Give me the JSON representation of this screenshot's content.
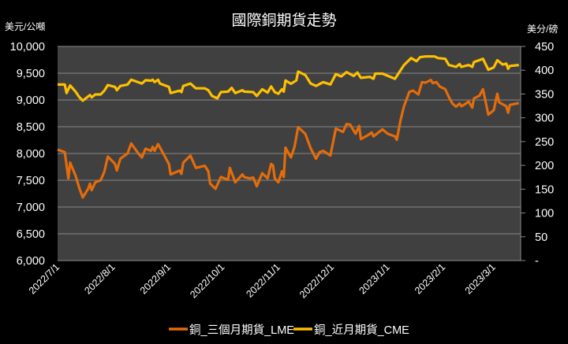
{
  "chart_data": {
    "type": "line",
    "title": "國際銅期貨走勢",
    "ylabel_left": "美元/公噸",
    "ylabel_right": "美分/磅",
    "xlim": [
      "2022-07-01",
      "2023-03-16"
    ],
    "ylim_left": [
      6000,
      10000
    ],
    "ylim_right": [
      0,
      450
    ],
    "grid": true,
    "background": "#404040",
    "legend_position": "bottom",
    "x_ticks": [
      "2022-07-01",
      "2022-08-01",
      "2022-09-01",
      "2022-10-01",
      "2022-11-01",
      "2022-12-01",
      "2023-01-01",
      "2023-02-01",
      "2023-03-01"
    ],
    "x_tick_labels": [
      "2022/7/1",
      "2022/8/1",
      "2022/9/1",
      "2022/10/1",
      "2022/11/1",
      "2022/12/1",
      "2023/1/1",
      "2023/2/1",
      "2023/3/1"
    ],
    "y_left_ticks": [
      6000,
      6500,
      7000,
      7500,
      8000,
      8500,
      9000,
      9500,
      10000
    ],
    "y_left_tick_labels": [
      "6,000",
      "6,500",
      "7,000",
      "7,500",
      "8,000",
      "8,500",
      "9,000",
      "9,500",
      "10,000"
    ],
    "y_right_ticks": [
      0,
      50,
      100,
      150,
      200,
      250,
      300,
      350,
      400,
      450
    ],
    "y_right_tick_labels": [
      "-",
      "50",
      "100",
      "150",
      "200",
      "250",
      "300",
      "350",
      "400",
      "450"
    ],
    "series": [
      {
        "name": "銅_三個月期貨_LME",
        "axis": "left",
        "color": "#E46C0A",
        "points": [
          [
            "2022-07-01",
            8074
          ],
          [
            "2022-07-05",
            8025
          ],
          [
            "2022-07-07",
            7535
          ],
          [
            "2022-07-08",
            7830
          ],
          [
            "2022-07-11",
            7585
          ],
          [
            "2022-07-13",
            7364
          ],
          [
            "2022-07-15",
            7178
          ],
          [
            "2022-07-18",
            7340
          ],
          [
            "2022-07-19",
            7437
          ],
          [
            "2022-07-20",
            7315
          ],
          [
            "2022-07-22",
            7462
          ],
          [
            "2022-07-25",
            7500
          ],
          [
            "2022-07-27",
            7658
          ],
          [
            "2022-07-29",
            7942
          ],
          [
            "2022-08-02",
            7805
          ],
          [
            "2022-08-03",
            7682
          ],
          [
            "2022-08-05",
            7903
          ],
          [
            "2022-08-09",
            8000
          ],
          [
            "2022-08-11",
            8187
          ],
          [
            "2022-08-15",
            8000
          ],
          [
            "2022-08-17",
            7927
          ],
          [
            "2022-08-19",
            8089
          ],
          [
            "2022-08-22",
            8050
          ],
          [
            "2022-08-23",
            8123
          ],
          [
            "2022-08-24",
            8050
          ],
          [
            "2022-08-26",
            8177
          ],
          [
            "2022-09-01",
            7805
          ],
          [
            "2022-09-02",
            7609
          ],
          [
            "2022-09-07",
            7682
          ],
          [
            "2022-09-08",
            7619
          ],
          [
            "2022-09-09",
            7830
          ],
          [
            "2022-09-13",
            7962
          ],
          [
            "2022-09-16",
            7731
          ],
          [
            "2022-09-21",
            7770
          ],
          [
            "2022-09-23",
            7668
          ],
          [
            "2022-09-24",
            7437
          ],
          [
            "2022-09-27",
            7340
          ],
          [
            "2022-09-30",
            7560
          ],
          [
            "2022-10-04",
            7511
          ],
          [
            "2022-10-05",
            7731
          ],
          [
            "2022-10-08",
            7462
          ],
          [
            "2022-10-12",
            7609
          ],
          [
            "2022-10-13",
            7560
          ],
          [
            "2022-10-16",
            7535
          ],
          [
            "2022-10-18",
            7550
          ],
          [
            "2022-10-20",
            7388
          ],
          [
            "2022-10-23",
            7633
          ],
          [
            "2022-10-26",
            7535
          ],
          [
            "2022-10-28",
            7805
          ],
          [
            "2022-10-29",
            7780
          ],
          [
            "2022-10-30",
            7535
          ],
          [
            "2022-11-01",
            7462
          ],
          [
            "2022-11-03",
            7668
          ],
          [
            "2022-11-04",
            7560
          ],
          [
            "2022-11-05",
            8109
          ],
          [
            "2022-11-08",
            7927
          ],
          [
            "2022-11-10",
            8123
          ],
          [
            "2022-11-12",
            8491
          ],
          [
            "2022-11-16",
            8368
          ],
          [
            "2022-11-19",
            8099
          ],
          [
            "2022-11-22",
            7903
          ],
          [
            "2022-11-24",
            8025
          ],
          [
            "2022-11-26",
            8050
          ],
          [
            "2022-11-30",
            7962
          ],
          [
            "2022-12-03",
            8466
          ],
          [
            "2022-12-07",
            8403
          ],
          [
            "2022-12-09",
            8550
          ],
          [
            "2022-12-11",
            8540
          ],
          [
            "2022-12-14",
            8368
          ],
          [
            "2022-12-16",
            8515
          ],
          [
            "2022-12-17",
            8270
          ],
          [
            "2022-12-21",
            8344
          ],
          [
            "2022-12-23",
            8393
          ],
          [
            "2022-12-24",
            8320
          ],
          [
            "2022-12-29",
            8452
          ],
          [
            "2023-01-01",
            8368
          ],
          [
            "2023-01-05",
            8320
          ],
          [
            "2023-01-06",
            8256
          ],
          [
            "2023-01-08",
            8613
          ],
          [
            "2023-01-10",
            8883
          ],
          [
            "2023-01-13",
            9152
          ],
          [
            "2023-01-15",
            9177
          ],
          [
            "2023-01-18",
            9103
          ],
          [
            "2023-01-20",
            9334
          ],
          [
            "2023-01-22",
            9324
          ],
          [
            "2023-01-25",
            9373
          ],
          [
            "2023-01-26",
            9314
          ],
          [
            "2023-01-28",
            9334
          ],
          [
            "2023-01-30",
            9250
          ],
          [
            "2023-02-02",
            9201
          ],
          [
            "2023-02-04",
            9054
          ],
          [
            "2023-02-06",
            8932
          ],
          [
            "2023-02-08",
            8873
          ],
          [
            "2023-02-10",
            8932
          ],
          [
            "2023-02-11",
            8883
          ],
          [
            "2023-02-13",
            8922
          ],
          [
            "2023-02-15",
            8971
          ],
          [
            "2023-02-17",
            8858
          ],
          [
            "2023-02-18",
            9030
          ],
          [
            "2023-02-21",
            9079
          ],
          [
            "2023-02-23",
            9201
          ],
          [
            "2023-02-26",
            8726
          ],
          [
            "2023-03-01",
            8809
          ],
          [
            "2023-03-03",
            9118
          ],
          [
            "2023-03-04",
            8956
          ],
          [
            "2023-03-08",
            8883
          ],
          [
            "2023-03-09",
            8760
          ],
          [
            "2023-03-10",
            8907
          ],
          [
            "2023-03-15",
            8942
          ]
        ]
      },
      {
        "name": "銅_近月期貨_CME",
        "axis": "right",
        "color": "#FFC000",
        "points": [
          [
            "2022-07-01",
            370
          ],
          [
            "2022-07-05",
            370
          ],
          [
            "2022-07-06",
            352
          ],
          [
            "2022-07-08",
            368
          ],
          [
            "2022-07-11",
            355
          ],
          [
            "2022-07-13",
            344
          ],
          [
            "2022-07-15",
            336
          ],
          [
            "2022-07-19",
            348
          ],
          [
            "2022-07-20",
            343
          ],
          [
            "2022-07-22",
            349
          ],
          [
            "2022-07-25",
            349
          ],
          [
            "2022-07-27",
            357
          ],
          [
            "2022-07-29",
            369
          ],
          [
            "2022-08-02",
            365
          ],
          [
            "2022-08-03",
            358
          ],
          [
            "2022-08-05",
            367
          ],
          [
            "2022-08-09",
            370
          ],
          [
            "2022-08-11",
            380
          ],
          [
            "2022-08-17",
            372
          ],
          [
            "2022-08-19",
            379
          ],
          [
            "2022-08-22",
            378
          ],
          [
            "2022-08-23",
            380
          ],
          [
            "2022-08-24",
            375
          ],
          [
            "2022-08-26",
            380
          ],
          [
            "2022-08-27",
            372
          ],
          [
            "2022-09-01",
            365
          ],
          [
            "2022-09-02",
            352
          ],
          [
            "2022-09-07",
            357
          ],
          [
            "2022-09-08",
            354
          ],
          [
            "2022-09-09",
            367
          ],
          [
            "2022-09-13",
            372
          ],
          [
            "2022-09-16",
            362
          ],
          [
            "2022-09-21",
            362
          ],
          [
            "2022-09-23",
            358
          ],
          [
            "2022-09-25",
            346
          ],
          [
            "2022-09-28",
            341
          ],
          [
            "2022-09-30",
            354
          ],
          [
            "2022-10-04",
            355
          ],
          [
            "2022-10-06",
            363
          ],
          [
            "2022-10-08",
            352
          ],
          [
            "2022-10-12",
            358
          ],
          [
            "2022-10-13",
            355
          ],
          [
            "2022-10-18",
            354
          ],
          [
            "2022-10-20",
            346
          ],
          [
            "2022-10-23",
            360
          ],
          [
            "2022-10-26",
            353
          ],
          [
            "2022-10-28",
            366
          ],
          [
            "2022-10-30",
            354
          ],
          [
            "2022-11-01",
            350.5
          ],
          [
            "2022-11-03",
            360
          ],
          [
            "2022-11-04",
            355
          ],
          [
            "2022-11-05",
            378.5
          ],
          [
            "2022-11-08",
            371.6
          ],
          [
            "2022-11-11",
            378.5
          ],
          [
            "2022-11-12",
            397
          ],
          [
            "2022-11-16",
            390
          ],
          [
            "2022-11-19",
            372
          ],
          [
            "2022-11-22",
            367
          ],
          [
            "2022-11-26",
            375
          ],
          [
            "2022-11-30",
            370
          ],
          [
            "2022-12-03",
            392
          ],
          [
            "2022-12-06",
            387
          ],
          [
            "2022-12-09",
            396
          ],
          [
            "2022-12-13",
            388
          ],
          [
            "2022-12-15",
            395
          ],
          [
            "2022-12-17",
            384
          ],
          [
            "2022-12-22",
            386
          ],
          [
            "2022-12-24",
            382
          ],
          [
            "2022-12-25",
            393
          ],
          [
            "2022-12-29",
            393
          ],
          [
            "2023-01-05",
            382
          ],
          [
            "2023-01-08",
            399.5
          ],
          [
            "2023-01-10",
            411
          ],
          [
            "2023-01-14",
            425.5
          ],
          [
            "2023-01-17",
            419
          ],
          [
            "2023-01-19",
            427.5
          ],
          [
            "2023-01-22",
            429
          ],
          [
            "2023-01-27",
            429
          ],
          [
            "2023-01-29",
            425.5
          ],
          [
            "2023-02-02",
            424
          ],
          [
            "2023-02-04",
            411
          ],
          [
            "2023-02-08",
            407
          ],
          [
            "2023-02-10",
            413
          ],
          [
            "2023-02-11",
            407
          ],
          [
            "2023-02-15",
            411
          ],
          [
            "2023-02-17",
            407
          ],
          [
            "2023-02-18",
            417
          ],
          [
            "2023-02-23",
            424
          ],
          [
            "2023-02-26",
            401
          ],
          [
            "2023-03-01",
            406
          ],
          [
            "2023-03-03",
            421
          ],
          [
            "2023-03-06",
            412
          ],
          [
            "2023-03-08",
            414
          ],
          [
            "2023-03-09",
            403
          ],
          [
            "2023-03-10",
            409
          ],
          [
            "2023-03-15",
            411
          ]
        ]
      }
    ]
  }
}
